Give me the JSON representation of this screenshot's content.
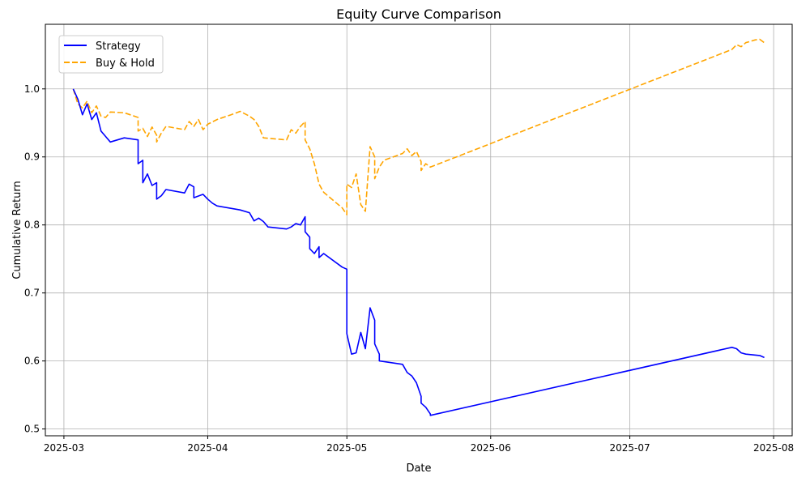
{
  "chart_data": {
    "type": "line",
    "title": "Equity Curve Comparison",
    "xlabel": "Date",
    "ylabel": "Cumulative Return",
    "xlim": [
      "2025-02-25",
      "2025-08-05"
    ],
    "ylim": [
      0.49,
      1.095
    ],
    "x_ticks": [
      "2025-03-01",
      "2025-04-01",
      "2025-05-01",
      "2025-06-01",
      "2025-07-01",
      "2025-08-01"
    ],
    "x_tick_labels": [
      "2025-03",
      "2025-04",
      "2025-05",
      "2025-06",
      "2025-07",
      "2025-08"
    ],
    "y_ticks": [
      0.5,
      0.6,
      0.7,
      0.8,
      0.9,
      1.0
    ],
    "y_tick_labels": [
      "0.5",
      "0.6",
      "0.7",
      "0.8",
      "0.9",
      "1.0"
    ],
    "grid": true,
    "legend_position": "top-left",
    "series": [
      {
        "name": "Strategy",
        "color": "#0000ff",
        "line_style": "solid",
        "points": [
          [
            "2025-03-03",
            1.0
          ],
          [
            "2025-03-04",
            0.985
          ],
          [
            "2025-03-05",
            0.962
          ],
          [
            "2025-03-06",
            0.978
          ],
          [
            "2025-03-07",
            0.955
          ],
          [
            "2025-03-08",
            0.965
          ],
          [
            "2025-03-09",
            0.938
          ],
          [
            "2025-03-10",
            0.93
          ],
          [
            "2025-03-11",
            0.922
          ],
          [
            "2025-03-14",
            0.928
          ],
          [
            "2025-03-17",
            0.925
          ],
          [
            "2025-03-17",
            0.89
          ],
          [
            "2025-03-18",
            0.895
          ],
          [
            "2025-03-18",
            0.862
          ],
          [
            "2025-03-19",
            0.875
          ],
          [
            "2025-03-20",
            0.858
          ],
          [
            "2025-03-21",
            0.862
          ],
          [
            "2025-03-21",
            0.838
          ],
          [
            "2025-03-22",
            0.843
          ],
          [
            "2025-03-23",
            0.852
          ],
          [
            "2025-03-27",
            0.847
          ],
          [
            "2025-03-28",
            0.86
          ],
          [
            "2025-03-29",
            0.856
          ],
          [
            "2025-03-29",
            0.84
          ],
          [
            "2025-03-31",
            0.845
          ],
          [
            "2025-04-01",
            0.838
          ],
          [
            "2025-04-02",
            0.832
          ],
          [
            "2025-04-03",
            0.828
          ],
          [
            "2025-04-08",
            0.822
          ],
          [
            "2025-04-10",
            0.818
          ],
          [
            "2025-04-11",
            0.806
          ],
          [
            "2025-04-12",
            0.81
          ],
          [
            "2025-04-13",
            0.805
          ],
          [
            "2025-04-14",
            0.797
          ],
          [
            "2025-04-18",
            0.794
          ],
          [
            "2025-04-19",
            0.797
          ],
          [
            "2025-04-20",
            0.802
          ],
          [
            "2025-04-21",
            0.8
          ],
          [
            "2025-04-22",
            0.812
          ],
          [
            "2025-04-22",
            0.79
          ],
          [
            "2025-04-23",
            0.782
          ],
          [
            "2025-04-23",
            0.765
          ],
          [
            "2025-04-24",
            0.758
          ],
          [
            "2025-04-25",
            0.768
          ],
          [
            "2025-04-25",
            0.752
          ],
          [
            "2025-04-26",
            0.758
          ],
          [
            "2025-04-30",
            0.738
          ],
          [
            "2025-05-01",
            0.735
          ],
          [
            "2025-05-01",
            0.64
          ],
          [
            "2025-05-02",
            0.61
          ],
          [
            "2025-05-03",
            0.612
          ],
          [
            "2025-05-04",
            0.642
          ],
          [
            "2025-05-05",
            0.618
          ],
          [
            "2025-05-06",
            0.678
          ],
          [
            "2025-05-07",
            0.66
          ],
          [
            "2025-05-07",
            0.625
          ],
          [
            "2025-05-08",
            0.61
          ],
          [
            "2025-05-08",
            0.6
          ],
          [
            "2025-05-13",
            0.595
          ],
          [
            "2025-05-14",
            0.583
          ],
          [
            "2025-05-15",
            0.578
          ],
          [
            "2025-05-16",
            0.568
          ],
          [
            "2025-05-17",
            0.548
          ],
          [
            "2025-05-17",
            0.538
          ],
          [
            "2025-05-18",
            0.532
          ],
          [
            "2025-05-19",
            0.522
          ],
          [
            "2025-05-19",
            0.52
          ],
          [
            "2025-07-23",
            0.62
          ],
          [
            "2025-07-24",
            0.618
          ],
          [
            "2025-07-25",
            0.612
          ],
          [
            "2025-07-26",
            0.61
          ],
          [
            "2025-07-29",
            0.608
          ],
          [
            "2025-07-30",
            0.605
          ]
        ]
      },
      {
        "name": "Buy & Hold",
        "color": "#ffa500",
        "line_style": "dashed",
        "points": [
          [
            "2025-03-03",
            1.0
          ],
          [
            "2025-03-04",
            0.978
          ],
          [
            "2025-03-05",
            0.972
          ],
          [
            "2025-03-06",
            0.982
          ],
          [
            "2025-03-07",
            0.965
          ],
          [
            "2025-03-08",
            0.975
          ],
          [
            "2025-03-09",
            0.96
          ],
          [
            "2025-03-10",
            0.958
          ],
          [
            "2025-03-11",
            0.966
          ],
          [
            "2025-03-14",
            0.965
          ],
          [
            "2025-03-17",
            0.958
          ],
          [
            "2025-03-17",
            0.938
          ],
          [
            "2025-03-18",
            0.942
          ],
          [
            "2025-03-19",
            0.93
          ],
          [
            "2025-03-20",
            0.944
          ],
          [
            "2025-03-21",
            0.932
          ],
          [
            "2025-03-21",
            0.922
          ],
          [
            "2025-03-22",
            0.935
          ],
          [
            "2025-03-23",
            0.945
          ],
          [
            "2025-03-27",
            0.94
          ],
          [
            "2025-03-28",
            0.952
          ],
          [
            "2025-03-29",
            0.945
          ],
          [
            "2025-03-30",
            0.955
          ],
          [
            "2025-03-31",
            0.94
          ],
          [
            "2025-04-01",
            0.948
          ],
          [
            "2025-04-03",
            0.955
          ],
          [
            "2025-04-06",
            0.962
          ],
          [
            "2025-04-08",
            0.967
          ],
          [
            "2025-04-10",
            0.96
          ],
          [
            "2025-04-11",
            0.955
          ],
          [
            "2025-04-12",
            0.945
          ],
          [
            "2025-04-13",
            0.928
          ],
          [
            "2025-04-18",
            0.925
          ],
          [
            "2025-04-19",
            0.94
          ],
          [
            "2025-04-20",
            0.935
          ],
          [
            "2025-04-21",
            0.945
          ],
          [
            "2025-04-22",
            0.952
          ],
          [
            "2025-04-22",
            0.925
          ],
          [
            "2025-04-23",
            0.912
          ],
          [
            "2025-04-24",
            0.89
          ],
          [
            "2025-04-25",
            0.86
          ],
          [
            "2025-04-26",
            0.848
          ],
          [
            "2025-04-30",
            0.825
          ],
          [
            "2025-05-01",
            0.815
          ],
          [
            "2025-05-01",
            0.86
          ],
          [
            "2025-05-02",
            0.855
          ],
          [
            "2025-05-03",
            0.875
          ],
          [
            "2025-05-04",
            0.83
          ],
          [
            "2025-05-05",
            0.82
          ],
          [
            "2025-05-06",
            0.915
          ],
          [
            "2025-05-07",
            0.9
          ],
          [
            "2025-05-07",
            0.868
          ],
          [
            "2025-05-08",
            0.885
          ],
          [
            "2025-05-09",
            0.895
          ],
          [
            "2025-05-13",
            0.905
          ],
          [
            "2025-05-14",
            0.912
          ],
          [
            "2025-05-15",
            0.902
          ],
          [
            "2025-05-16",
            0.908
          ],
          [
            "2025-05-17",
            0.893
          ],
          [
            "2025-05-17",
            0.88
          ],
          [
            "2025-05-18",
            0.89
          ],
          [
            "2025-05-19",
            0.885
          ],
          [
            "2025-07-23",
            1.058
          ],
          [
            "2025-07-24",
            1.065
          ],
          [
            "2025-07-25",
            1.062
          ],
          [
            "2025-07-26",
            1.068
          ],
          [
            "2025-07-28",
            1.072
          ],
          [
            "2025-07-29",
            1.073
          ],
          [
            "2025-07-30",
            1.068
          ]
        ]
      }
    ]
  }
}
